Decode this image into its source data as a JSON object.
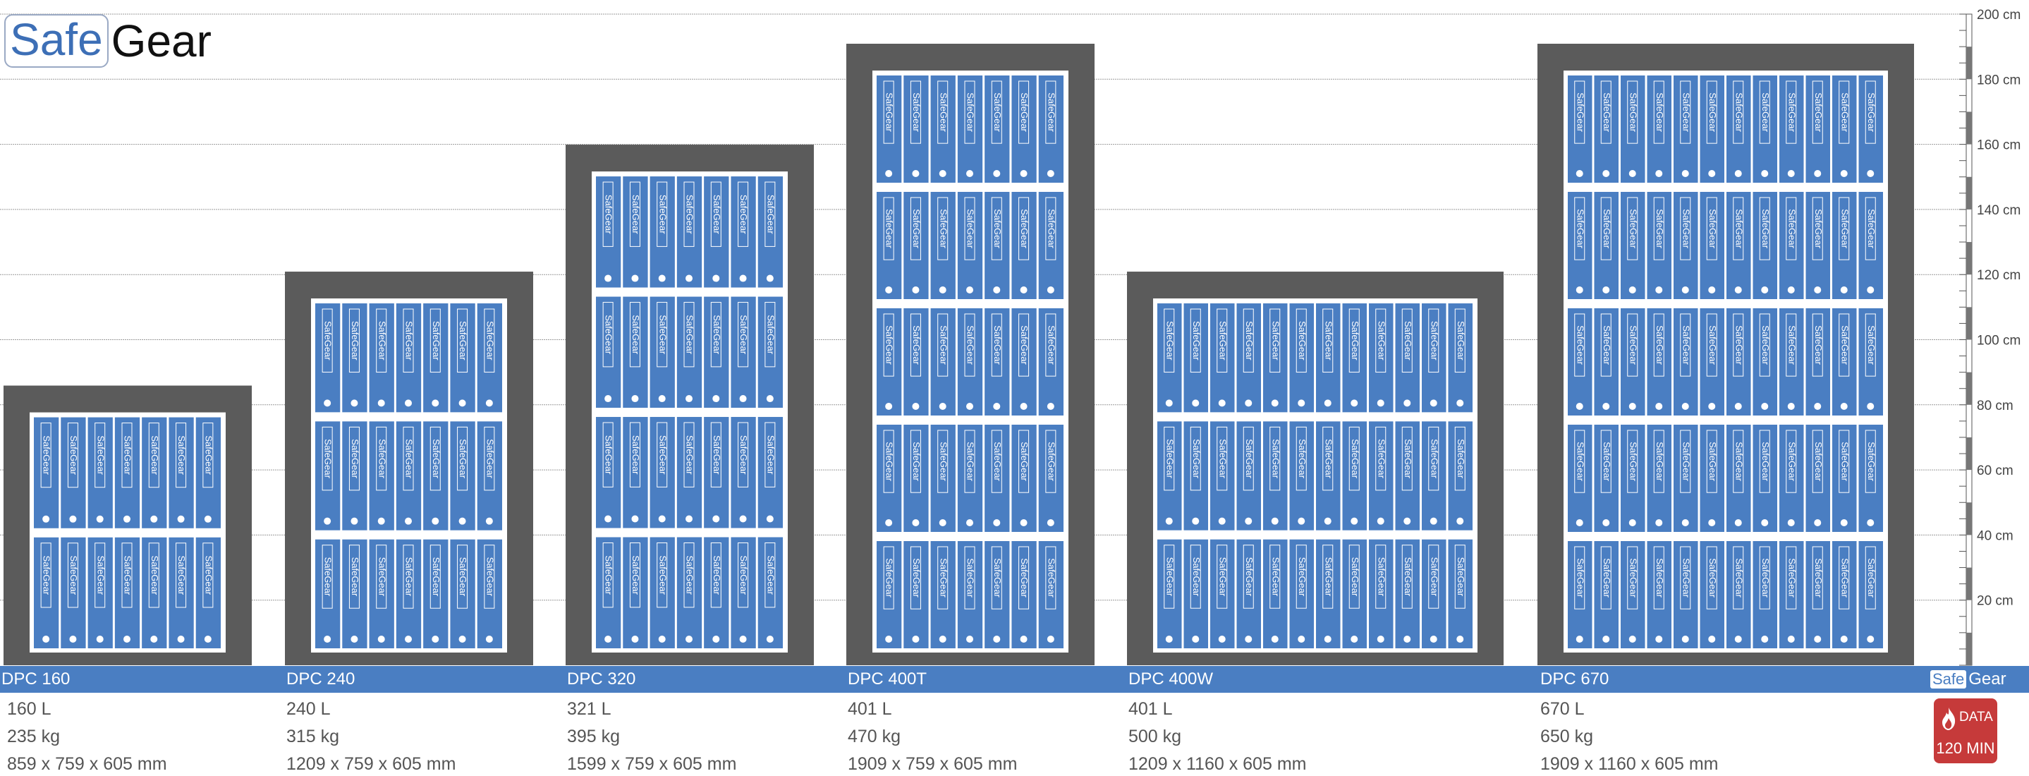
{
  "brand": {
    "safe": "Safe",
    "gear": "Gear"
  },
  "scale": {
    "unit": "cm",
    "max": 200,
    "step": 20,
    "ticks": [
      "20 cm",
      "40 cm",
      "60 cm",
      "80 cm",
      "100 cm",
      "120 cm",
      "140 cm",
      "160 cm",
      "180 cm",
      "200 cm"
    ]
  },
  "binder_label": "SafeGear",
  "colors": {
    "safe_body": "#5b5b5b",
    "binder": "#4a7ec2",
    "band": "#4a7ec2",
    "badge": "#c63a3a"
  },
  "models": [
    {
      "name": "DPC 160",
      "volume": "160 L",
      "weight": "235 kg",
      "dimensions": "859 x 759 x 605 mm",
      "height_cm": 85.9,
      "shelves": 2,
      "binders_per_shelf": 7
    },
    {
      "name": "DPC 240",
      "volume": "240 L",
      "weight": "315 kg",
      "dimensions": "1209 x 759 x 605 mm",
      "height_cm": 120.9,
      "shelves": 3,
      "binders_per_shelf": 7
    },
    {
      "name": "DPC 320",
      "volume": "321 L",
      "weight": "395 kg",
      "dimensions": "1599 x 759 x 605 mm",
      "height_cm": 159.9,
      "shelves": 4,
      "binders_per_shelf": 7
    },
    {
      "name": "DPC 400T",
      "volume": "401 L",
      "weight": "470 kg",
      "dimensions": "1909 x 759 x 605 mm",
      "height_cm": 190.9,
      "shelves": 5,
      "binders_per_shelf": 7
    },
    {
      "name": "DPC 400W",
      "volume": "401 L",
      "weight": "500 kg",
      "dimensions": "1209 x 1160 x 605 mm",
      "height_cm": 120.9,
      "shelves": 3,
      "binders_per_shelf": 12
    },
    {
      "name": "DPC 670",
      "volume": "670 L",
      "weight": "650 kg",
      "dimensions": "1909 x 1160 x 605 mm",
      "height_cm": 190.9,
      "shelves": 5,
      "binders_per_shelf": 12
    }
  ],
  "band_logo": {
    "safe": "Safe",
    "gear": "Gear"
  },
  "badge": {
    "line1": "DATA",
    "line2": "120 MIN"
  }
}
